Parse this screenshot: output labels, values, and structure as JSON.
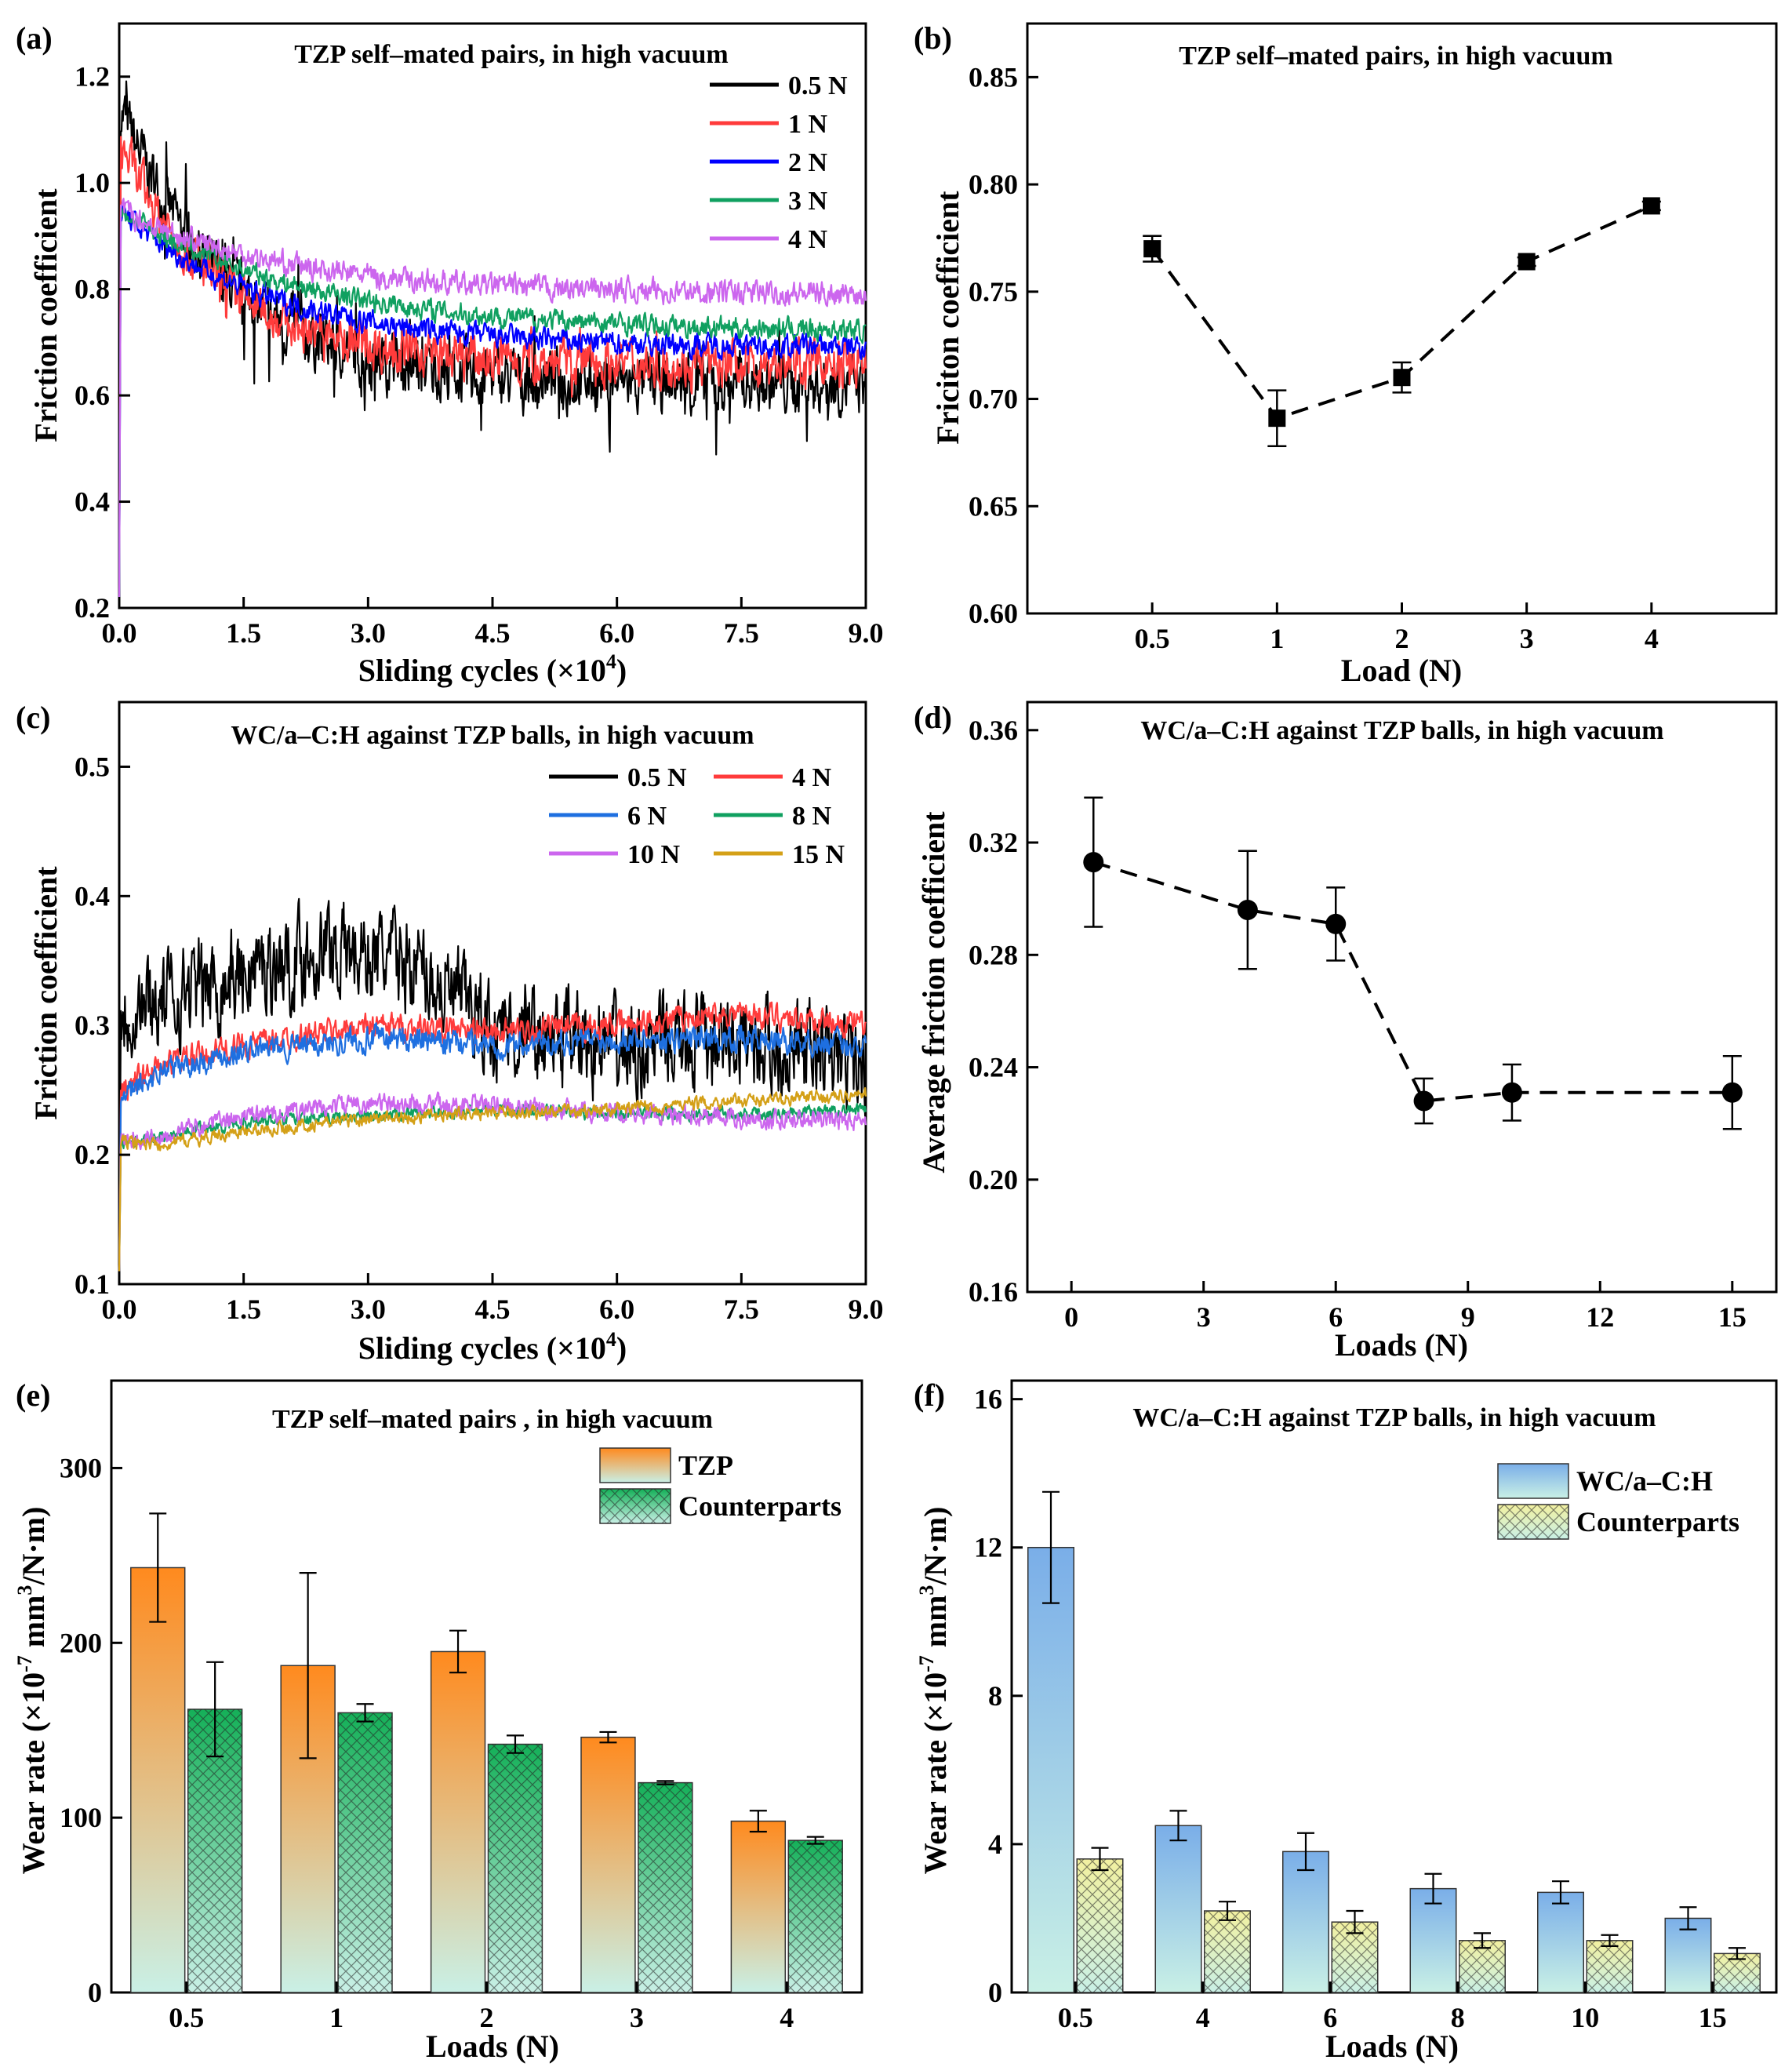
{
  "chart_data": [
    {
      "panel": "(a)",
      "type": "line",
      "title": "TZP self–mated pairs, in high vacuum",
      "xlabel": "Sliding cycles (×10",
      "xlabel_sup": "4",
      "xlabel_end": ")",
      "ylabel": "Friction coefficient",
      "xlim": [
        0,
        9
      ],
      "ylim": [
        0.2,
        1.3
      ],
      "xticks": [
        "0.0",
        "1.5",
        "3.0",
        "4.5",
        "6.0",
        "7.5",
        "9.0"
      ],
      "xtick_values": [
        0,
        1.5,
        3,
        4.5,
        6,
        7.5,
        9
      ],
      "yticks": [
        "0.2",
        "0.4",
        "0.6",
        "0.8",
        "1.0",
        "1.2"
      ],
      "ytick_values": [
        0.2,
        0.4,
        0.6,
        0.8,
        1.0,
        1.2
      ],
      "series": [
        {
          "name": "0.5 N",
          "color": "#000000",
          "start": 1.15,
          "end": 0.62,
          "tau": 1.3,
          "noise": 0.045,
          "spikes": 0.25
        },
        {
          "name": "1 N",
          "color": "#ff3b3b",
          "start": 1.08,
          "end": 0.66,
          "tau": 1.2,
          "noise": 0.035,
          "spikes": 0.08
        },
        {
          "name": "2 N",
          "color": "#0000ff",
          "start": 0.95,
          "end": 0.69,
          "tau": 1.8,
          "noise": 0.018,
          "spikes": 0.0
        },
        {
          "name": "3 N",
          "color": "#10a060",
          "start": 0.95,
          "end": 0.72,
          "tau": 2.2,
          "noise": 0.016,
          "spikes": 0.0
        },
        {
          "name": "4 N",
          "color": "#cc66ee",
          "start": 0.95,
          "end": 0.79,
          "tau": 2.0,
          "noise": 0.018,
          "spikes": 0.0
        }
      ]
    },
    {
      "panel": "(b)",
      "type": "scatter",
      "title": "TZP self–mated pairs, in high vacuum",
      "xlabel": "Load (N)",
      "ylabel": "Friciton coefficient",
      "marker": "square",
      "categorical": true,
      "xlim": [
        0,
        6
      ],
      "ylim": [
        0.6,
        0.875
      ],
      "categories": [
        "0.5",
        "1",
        "2",
        "3",
        "4"
      ],
      "x": [
        1,
        2,
        3,
        4,
        5
      ],
      "values": [
        0.77,
        0.691,
        0.71,
        0.764,
        0.79
      ],
      "errors": [
        0.006,
        0.013,
        0.007,
        0.002,
        0.002
      ],
      "yticks": [
        "0.60",
        "0.65",
        "0.70",
        "0.75",
        "0.80",
        "0.85"
      ],
      "ytick_values": [
        0.6,
        0.65,
        0.7,
        0.75,
        0.8,
        0.85
      ]
    },
    {
      "panel": "(c)",
      "type": "line",
      "title": "WC/a–C:H against TZP balls, in high vacuum",
      "xlabel": "Sliding cycles (×10",
      "xlabel_sup": "4",
      "xlabel_end": ")",
      "ylabel": "Friction coefficient",
      "xlim": [
        0,
        9
      ],
      "ylim": [
        0.1,
        0.55
      ],
      "xticks": [
        "0.0",
        "1.5",
        "3.0",
        "4.5",
        "6.0",
        "7.5",
        "9.0"
      ],
      "xtick_values": [
        0,
        1.5,
        3,
        4.5,
        6,
        7.5,
        9
      ],
      "yticks": [
        "0.1",
        "0.2",
        "0.3",
        "0.4",
        "0.5"
      ],
      "ytick_values": [
        0.1,
        0.2,
        0.3,
        0.4,
        0.5
      ],
      "series": [
        {
          "name": "0.5 N",
          "color": "#000000",
          "profile": [
            [
              0,
              0.31
            ],
            [
              1.5,
              0.34
            ],
            [
              2.5,
              0.36
            ],
            [
              3.5,
              0.35
            ],
            [
              4.5,
              0.3
            ],
            [
              6,
              0.28
            ],
            [
              7.5,
              0.29
            ],
            [
              9,
              0.27
            ]
          ],
          "noise": 0.03
        },
        {
          "name": "4 N",
          "color": "#ff3b3b",
          "profile": [
            [
              0,
              0.25
            ],
            [
              0.5,
              0.27
            ],
            [
              1.5,
              0.285
            ],
            [
              3,
              0.3
            ],
            [
              4.5,
              0.295
            ],
            [
              6,
              0.3
            ],
            [
              7.5,
              0.31
            ],
            [
              9,
              0.3
            ]
          ],
          "noise": 0.008
        },
        {
          "name": "6 N",
          "color": "#1e6fe0",
          "profile": [
            [
              0,
              0.24
            ],
            [
              0.5,
              0.265
            ],
            [
              1.5,
              0.28
            ],
            [
              3,
              0.29
            ],
            [
              4.5,
              0.285
            ],
            [
              6,
              0.29
            ],
            [
              7.5,
              0.29
            ],
            [
              9,
              0.285
            ]
          ],
          "noise": 0.008
        },
        {
          "name": "8 N",
          "color": "#10a060",
          "profile": [
            [
              0,
              0.21
            ],
            [
              0.5,
              0.215
            ],
            [
              1.5,
              0.225
            ],
            [
              3,
              0.23
            ],
            [
              4.5,
              0.235
            ],
            [
              6,
              0.232
            ],
            [
              7.5,
              0.232
            ],
            [
              9,
              0.235
            ]
          ],
          "noise": 0.004
        },
        {
          "name": "10 N",
          "color": "#cc66ee",
          "profile": [
            [
              0,
              0.21
            ],
            [
              0.5,
              0.215
            ],
            [
              1.5,
              0.23
            ],
            [
              3,
              0.24
            ],
            [
              4.5,
              0.238
            ],
            [
              6,
              0.232
            ],
            [
              7.5,
              0.228
            ],
            [
              9,
              0.226
            ]
          ],
          "noise": 0.006
        },
        {
          "name": "15 N",
          "color": "#d4a017",
          "profile": [
            [
              0,
              0.21
            ],
            [
              0.5,
              0.208
            ],
            [
              1.5,
              0.218
            ],
            [
              3,
              0.228
            ],
            [
              4.5,
              0.232
            ],
            [
              6,
              0.235
            ],
            [
              7.5,
              0.242
            ],
            [
              9,
              0.246
            ]
          ],
          "noise": 0.004
        }
      ]
    },
    {
      "panel": "(d)",
      "type": "scatter",
      "title": "WC/a–C:H against TZP balls, in high vacuum",
      "xlabel": "Loads (N)",
      "ylabel": "Average friction coefficient",
      "marker": "circle",
      "xlim": [
        -1,
        16
      ],
      "ylim": [
        0.16,
        0.37
      ],
      "x": [
        0.5,
        4,
        6,
        8,
        10,
        15
      ],
      "values": [
        0.313,
        0.296,
        0.291,
        0.228,
        0.231,
        0.231
      ],
      "errors": [
        0.023,
        0.021,
        0.013,
        0.008,
        0.01,
        0.013
      ],
      "xticks": [
        "0",
        "3",
        "6",
        "9",
        "12",
        "15"
      ],
      "xtick_values": [
        0,
        3,
        6,
        9,
        12,
        15
      ],
      "yticks": [
        "0.16",
        "0.20",
        "0.24",
        "0.28",
        "0.32",
        "0.36"
      ],
      "ytick_values": [
        0.16,
        0.2,
        0.24,
        0.28,
        0.32,
        0.36
      ]
    },
    {
      "panel": "(e)",
      "type": "bar",
      "title": "TZP self–mated pairs , in high vacuum",
      "xlabel": "Loads (N)",
      "ylabel": "Wear rate (×10",
      "ylabel_sup1": "-7",
      "ylabel_mid": " mm",
      "ylabel_sup2": "3",
      "ylabel_end": "/N·m)",
      "ylim": [
        0,
        350
      ],
      "categories": [
        "0.5",
        "1",
        "2",
        "3",
        "4"
      ],
      "yticks": [
        "0",
        "100",
        "200",
        "300"
      ],
      "ytick_values": [
        0,
        100,
        200,
        300
      ],
      "series": [
        {
          "name": "TZP",
          "top_color": "#ff8a1e",
          "bottom_color": "#c9f0e6",
          "hatch": false,
          "values": [
            243,
            187,
            195,
            146,
            98
          ],
          "errors": [
            31,
            53,
            12,
            3,
            6
          ]
        },
        {
          "name": "Counterparts",
          "top_color": "#14b058",
          "bottom_color": "#c9f0e6",
          "hatch": true,
          "values": [
            162,
            160,
            142,
            120,
            87
          ],
          "errors": [
            27,
            5,
            5,
            1,
            2
          ]
        }
      ]
    },
    {
      "panel": "(f)",
      "type": "bar",
      "title": "WC/a–C:H against TZP balls, in high vacuum",
      "xlabel": "Loads (N)",
      "ylabel": "Wear rate (×10",
      "ylabel_sup1": "-7",
      "ylabel_mid": " mm",
      "ylabel_sup2": "3",
      "ylabel_end": "/N·m)",
      "ylim": [
        0,
        16.5
      ],
      "categories": [
        "0.5",
        "4",
        "6",
        "8",
        "10",
        "15"
      ],
      "yticks": [
        "0",
        "4",
        "8",
        "12",
        "16"
      ],
      "ytick_values": [
        0,
        4,
        8,
        12,
        16
      ],
      "series": [
        {
          "name": "WC/a–C:H",
          "top_color": "#7aaee8",
          "bottom_color": "#c9f0e6",
          "hatch": false,
          "values": [
            12.0,
            4.5,
            3.8,
            2.8,
            2.7,
            2.0
          ],
          "errors": [
            1.5,
            0.4,
            0.5,
            0.4,
            0.3,
            0.3
          ]
        },
        {
          "name": "Counterparts",
          "top_color": "#f2f0a0",
          "bottom_color": "#c9f0e6",
          "hatch": true,
          "values": [
            3.6,
            2.2,
            1.9,
            1.4,
            1.4,
            1.05
          ],
          "errors": [
            0.3,
            0.25,
            0.3,
            0.2,
            0.15,
            0.15
          ]
        }
      ]
    }
  ]
}
